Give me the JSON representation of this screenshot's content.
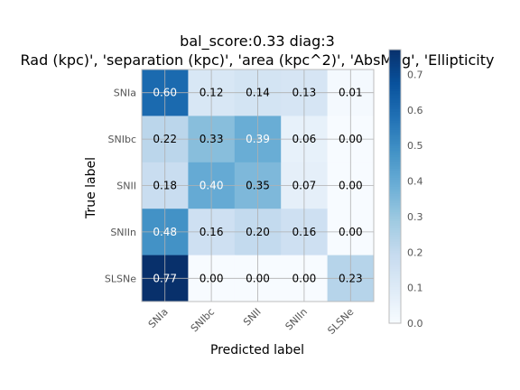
{
  "chart_data": {
    "type": "heatmap",
    "title_line1": "bal_score:0.33 diag:3",
    "title_line2": "Rad (kpc)', 'separation (kpc)', 'area (kpc^2)', 'AbsMag', 'Ellipticity",
    "xlabel": "Predicted label",
    "ylabel": "True label",
    "x_categories": [
      "SNIa",
      "SNIbc",
      "SNII",
      "SNIIn",
      "SLSNe"
    ],
    "y_categories": [
      "SNIa",
      "SNIbc",
      "SNII",
      "SNIIn",
      "SLSNe"
    ],
    "values": [
      [
        0.6,
        0.12,
        0.14,
        0.13,
        0.01
      ],
      [
        0.22,
        0.33,
        0.39,
        0.06,
        0.0
      ],
      [
        0.18,
        0.4,
        0.35,
        0.07,
        0.0
      ],
      [
        0.48,
        0.16,
        0.2,
        0.16,
        0.0
      ],
      [
        0.77,
        0.0,
        0.0,
        0.0,
        0.23
      ]
    ],
    "value_labels": [
      [
        "0.60",
        "0.12",
        "0.14",
        "0.13",
        "0.01"
      ],
      [
        "0.22",
        "0.33",
        "0.39",
        "0.06",
        "0.00"
      ],
      [
        "0.18",
        "0.40",
        "0.35",
        "0.07",
        "0.00"
      ],
      [
        "0.48",
        "0.16",
        "0.20",
        "0.16",
        "0.00"
      ],
      [
        "0.77",
        "0.00",
        "0.00",
        "0.00",
        "0.23"
      ]
    ],
    "colormap": "Blues",
    "colorbar_range": [
      0.0,
      0.77
    ],
    "colorbar_ticks": [
      {
        "value": 0.0,
        "label": "0.0"
      },
      {
        "value": 0.1,
        "label": "0.1"
      },
      {
        "value": 0.2,
        "label": "0.2"
      },
      {
        "value": 0.3,
        "label": "0.3"
      },
      {
        "value": 0.4,
        "label": "0.4"
      },
      {
        "value": 0.5,
        "label": "0.5"
      },
      {
        "value": 0.6,
        "label": "0.6"
      },
      {
        "value": 0.7,
        "label": "0.7"
      }
    ],
    "grid": true
  }
}
